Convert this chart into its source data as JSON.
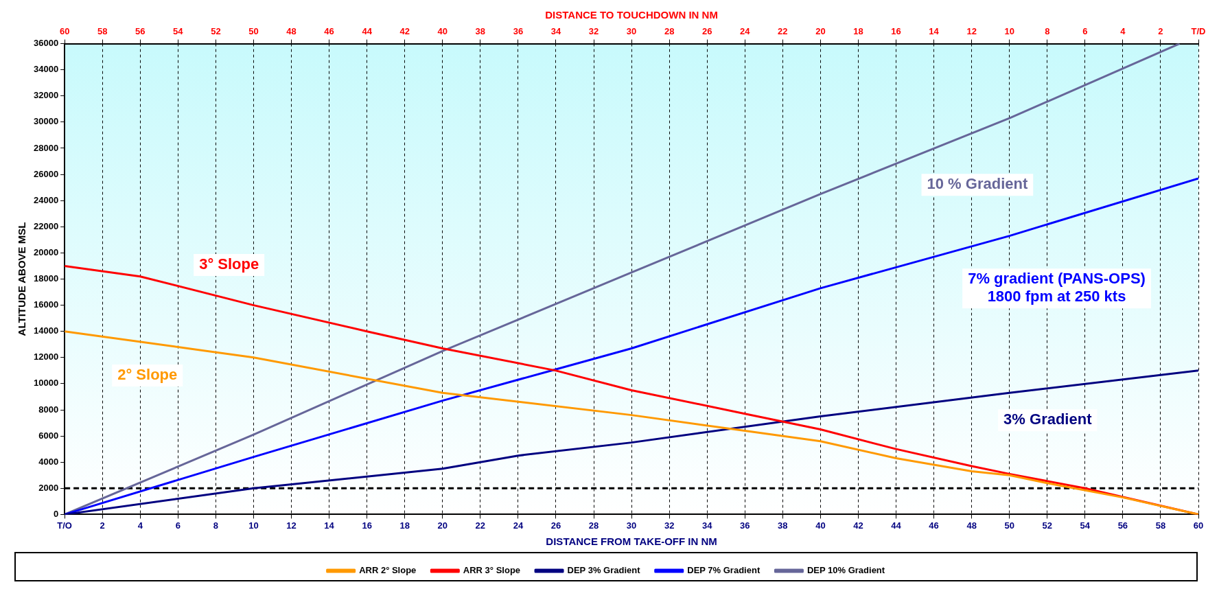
{
  "chart_data": {
    "type": "line",
    "xlabel": "DISTANCE FROM TAKE-OFF IN NM",
    "x2label": "DISTANCE TO TOUCHDOWN IN NM",
    "ylabel": "ALTITUDE ABOVE MSL",
    "xlim": [
      0,
      60
    ],
    "xticks": [
      {
        "value": 0,
        "label": "T/O"
      },
      2,
      4,
      6,
      8,
      10,
      12,
      14,
      16,
      18,
      20,
      22,
      24,
      26,
      28,
      30,
      32,
      34,
      36,
      38,
      40,
      42,
      44,
      46,
      48,
      50,
      52,
      54,
      56,
      58,
      60
    ],
    "x2lim": [
      60,
      0
    ],
    "x2ticks": [
      60,
      58,
      56,
      54,
      52,
      50,
      48,
      46,
      44,
      42,
      40,
      38,
      36,
      34,
      32,
      30,
      28,
      26,
      24,
      22,
      20,
      18,
      16,
      14,
      12,
      10,
      8,
      6,
      4,
      2,
      {
        "value": 0,
        "label": "T/D"
      }
    ],
    "ylim": [
      0,
      36000
    ],
    "yticks": [
      0,
      2000,
      4000,
      6000,
      8000,
      10000,
      12000,
      14000,
      16000,
      18000,
      20000,
      22000,
      24000,
      26000,
      28000,
      30000,
      32000,
      34000,
      36000
    ],
    "grid": "x",
    "legend": "bottom",
    "marker": "none",
    "line_style": "solid",
    "ref_lines": [
      {
        "axis": "y",
        "value": 2000,
        "color": "#000000",
        "line_style": "dashed"
      }
    ],
    "series": [
      {
        "name": "ARR 2° Slope",
        "color": "#ff9900",
        "x": [
          0,
          10,
          20,
          30,
          36,
          40,
          44,
          48,
          50,
          52,
          56,
          60
        ],
        "values": [
          14000,
          12000,
          9300,
          7600,
          6400,
          5600,
          4300,
          3300,
          3000,
          2400,
          1300,
          0
        ]
      },
      {
        "name": "ARR 3° Slope",
        "color": "#ff0000",
        "x": [
          0,
          4,
          10,
          16,
          20,
          26,
          30,
          36,
          40,
          44,
          48,
          50,
          54,
          60
        ],
        "values": [
          19000,
          18200,
          16000,
          14000,
          12700,
          11000,
          9500,
          7700,
          6500,
          5000,
          3700,
          3100,
          2000,
          0
        ]
      },
      {
        "name": "DEP 3% Gradient",
        "color": "#000080",
        "x": [
          0,
          10,
          20,
          24,
          30,
          40,
          50,
          60
        ],
        "values": [
          0,
          2000,
          3500,
          4500,
          5500,
          7500,
          9300,
          11000
        ]
      },
      {
        "name": "DEP 7% Gradient",
        "color": "#0000ff",
        "x": [
          0,
          10,
          20,
          26,
          30,
          40,
          50,
          60
        ],
        "values": [
          0,
          4400,
          8700,
          11100,
          12700,
          17300,
          21300,
          25700
        ]
      },
      {
        "name": "DEP 10% Gradient",
        "color": "#666699",
        "x": [
          0,
          10,
          20,
          30,
          40,
          50,
          59
        ],
        "values": [
          0,
          6100,
          12500,
          18500,
          24500,
          30300,
          36000
        ]
      }
    ],
    "annotations": [
      "2° Slope",
      "3° Slope",
      "3% Gradient",
      "7% gradient (PANS-OPS)\n1800 fpm at 250 kts",
      "10 % Gradient"
    ]
  }
}
